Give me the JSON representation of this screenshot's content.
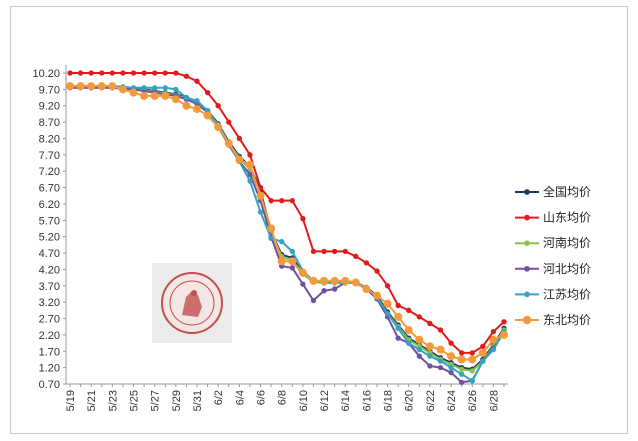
{
  "chart_data": {
    "type": "line",
    "title": "",
    "xlabel": "",
    "ylabel": "",
    "ylim": [
      0.7,
      10.2
    ],
    "yticks": [
      "10.20",
      "9.70",
      "9.20",
      "8.70",
      "8.20",
      "7.70",
      "7.20",
      "6.70",
      "6.20",
      "5.70",
      "5.20",
      "4.70",
      "4.20",
      "3.70",
      "3.20",
      "2.70",
      "2.20",
      "1.70",
      "1.20",
      "0.70"
    ],
    "x": [
      "5/19",
      "5/20",
      "5/21",
      "5/22",
      "5/23",
      "5/24",
      "5/25",
      "5/26",
      "5/27",
      "5/28",
      "5/29",
      "5/30",
      "5/31",
      "6/1",
      "6/2",
      "6/3",
      "6/4",
      "6/5",
      "6/6",
      "6/7",
      "6/8",
      "6/9",
      "6/10",
      "6/11",
      "6/12",
      "6/13",
      "6/14",
      "6/15",
      "6/16",
      "6/17",
      "6/18",
      "6/19",
      "6/20",
      "6/21",
      "6/22",
      "6/23",
      "6/24",
      "6/25",
      "6/26",
      "6/27",
      "6/28",
      "6/29"
    ],
    "xtick_labels": [
      "5/19",
      "5/21",
      "5/23",
      "5/25",
      "5/27",
      "5/29",
      "5/31",
      "6/2",
      "6/4",
      "6/6",
      "6/8",
      "6/10",
      "6/12",
      "6/14",
      "6/16",
      "6/18",
      "6/20",
      "6/22",
      "6/24",
      "6/26",
      "6/28"
    ],
    "legend_position": "right",
    "series": [
      {
        "name": "全国均价",
        "color": "#1f3864",
        "marker": "circle",
        "marker_size": 4,
        "values": [
          9.78,
          9.78,
          9.78,
          9.78,
          9.78,
          9.75,
          9.72,
          9.7,
          9.65,
          9.6,
          9.55,
          9.45,
          9.3,
          9.05,
          8.65,
          8.1,
          7.65,
          7.35,
          6.6,
          5.35,
          4.65,
          4.55,
          4.1,
          3.85,
          3.8,
          3.8,
          3.8,
          3.8,
          3.65,
          3.4,
          2.9,
          2.5,
          2.1,
          1.9,
          1.7,
          1.5,
          1.35,
          1.2,
          1.15,
          1.45,
          1.9,
          2.4
        ]
      },
      {
        "name": "山东均价",
        "color": "#e31a1c",
        "marker": "circle",
        "marker_size": 4,
        "values": [
          10.2,
          10.2,
          10.2,
          10.2,
          10.2,
          10.2,
          10.2,
          10.2,
          10.2,
          10.2,
          10.2,
          10.1,
          9.95,
          9.6,
          9.2,
          8.7,
          8.2,
          7.7,
          6.7,
          6.3,
          6.3,
          6.3,
          5.75,
          4.75,
          4.75,
          4.75,
          4.75,
          4.6,
          4.4,
          4.15,
          3.7,
          3.1,
          2.95,
          2.75,
          2.55,
          2.35,
          1.95,
          1.65,
          1.65,
          1.85,
          2.3,
          2.6
        ]
      },
      {
        "name": "河南均价",
        "color": "#8bc34a",
        "marker": "circle",
        "marker_size": 4,
        "values": [
          9.75,
          9.75,
          9.75,
          9.75,
          9.75,
          9.72,
          9.7,
          9.68,
          9.62,
          9.58,
          9.52,
          9.42,
          9.28,
          9.02,
          8.62,
          8.05,
          7.6,
          7.25,
          6.5,
          5.3,
          4.6,
          4.45,
          4.05,
          3.82,
          3.78,
          3.78,
          3.78,
          3.78,
          3.6,
          3.35,
          2.85,
          2.45,
          2.05,
          1.85,
          1.65,
          1.45,
          1.3,
          1.15,
          1.1,
          1.4,
          1.85,
          2.35
        ]
      },
      {
        "name": "河北均价",
        "color": "#7050a0",
        "marker": "circle",
        "marker_size": 4,
        "values": [
          9.75,
          9.75,
          9.75,
          9.75,
          9.75,
          9.72,
          9.7,
          9.65,
          9.6,
          9.55,
          9.5,
          9.4,
          9.25,
          9.0,
          8.55,
          8.0,
          7.5,
          7.1,
          6.3,
          5.2,
          4.3,
          4.25,
          3.75,
          3.25,
          3.55,
          3.6,
          3.8,
          3.8,
          3.6,
          3.3,
          2.75,
          2.1,
          1.95,
          1.55,
          1.25,
          1.2,
          1.05,
          0.75,
          0.8,
          1.4,
          1.8,
          2.3
        ]
      },
      {
        "name": "江苏均价",
        "color": "#31a3c4",
        "marker": "circle",
        "marker_size": 4,
        "values": [
          9.8,
          9.8,
          9.8,
          9.8,
          9.8,
          9.78,
          9.75,
          9.75,
          9.75,
          9.75,
          9.7,
          9.45,
          9.35,
          9.05,
          8.6,
          8.05,
          7.5,
          6.9,
          5.95,
          5.15,
          5.05,
          4.75,
          4.15,
          3.85,
          3.8,
          3.8,
          3.8,
          3.8,
          3.65,
          3.35,
          2.85,
          2.4,
          1.95,
          1.75,
          1.55,
          1.4,
          1.2,
          1.0,
          0.8,
          1.4,
          1.75,
          2.3
        ]
      },
      {
        "name": "东北均价",
        "color": "#f59a3c",
        "marker": "circle",
        "marker_size": 6,
        "values": [
          9.8,
          9.8,
          9.8,
          9.8,
          9.8,
          9.7,
          9.6,
          9.5,
          9.5,
          9.5,
          9.4,
          9.2,
          9.1,
          8.9,
          8.55,
          8.05,
          7.55,
          7.4,
          6.45,
          5.45,
          4.45,
          4.45,
          4.1,
          3.85,
          3.85,
          3.85,
          3.85,
          3.8,
          3.6,
          3.4,
          3.15,
          2.75,
          2.35,
          2.05,
          1.85,
          1.75,
          1.55,
          1.45,
          1.45,
          1.65,
          2.05,
          2.2
        ]
      }
    ]
  }
}
